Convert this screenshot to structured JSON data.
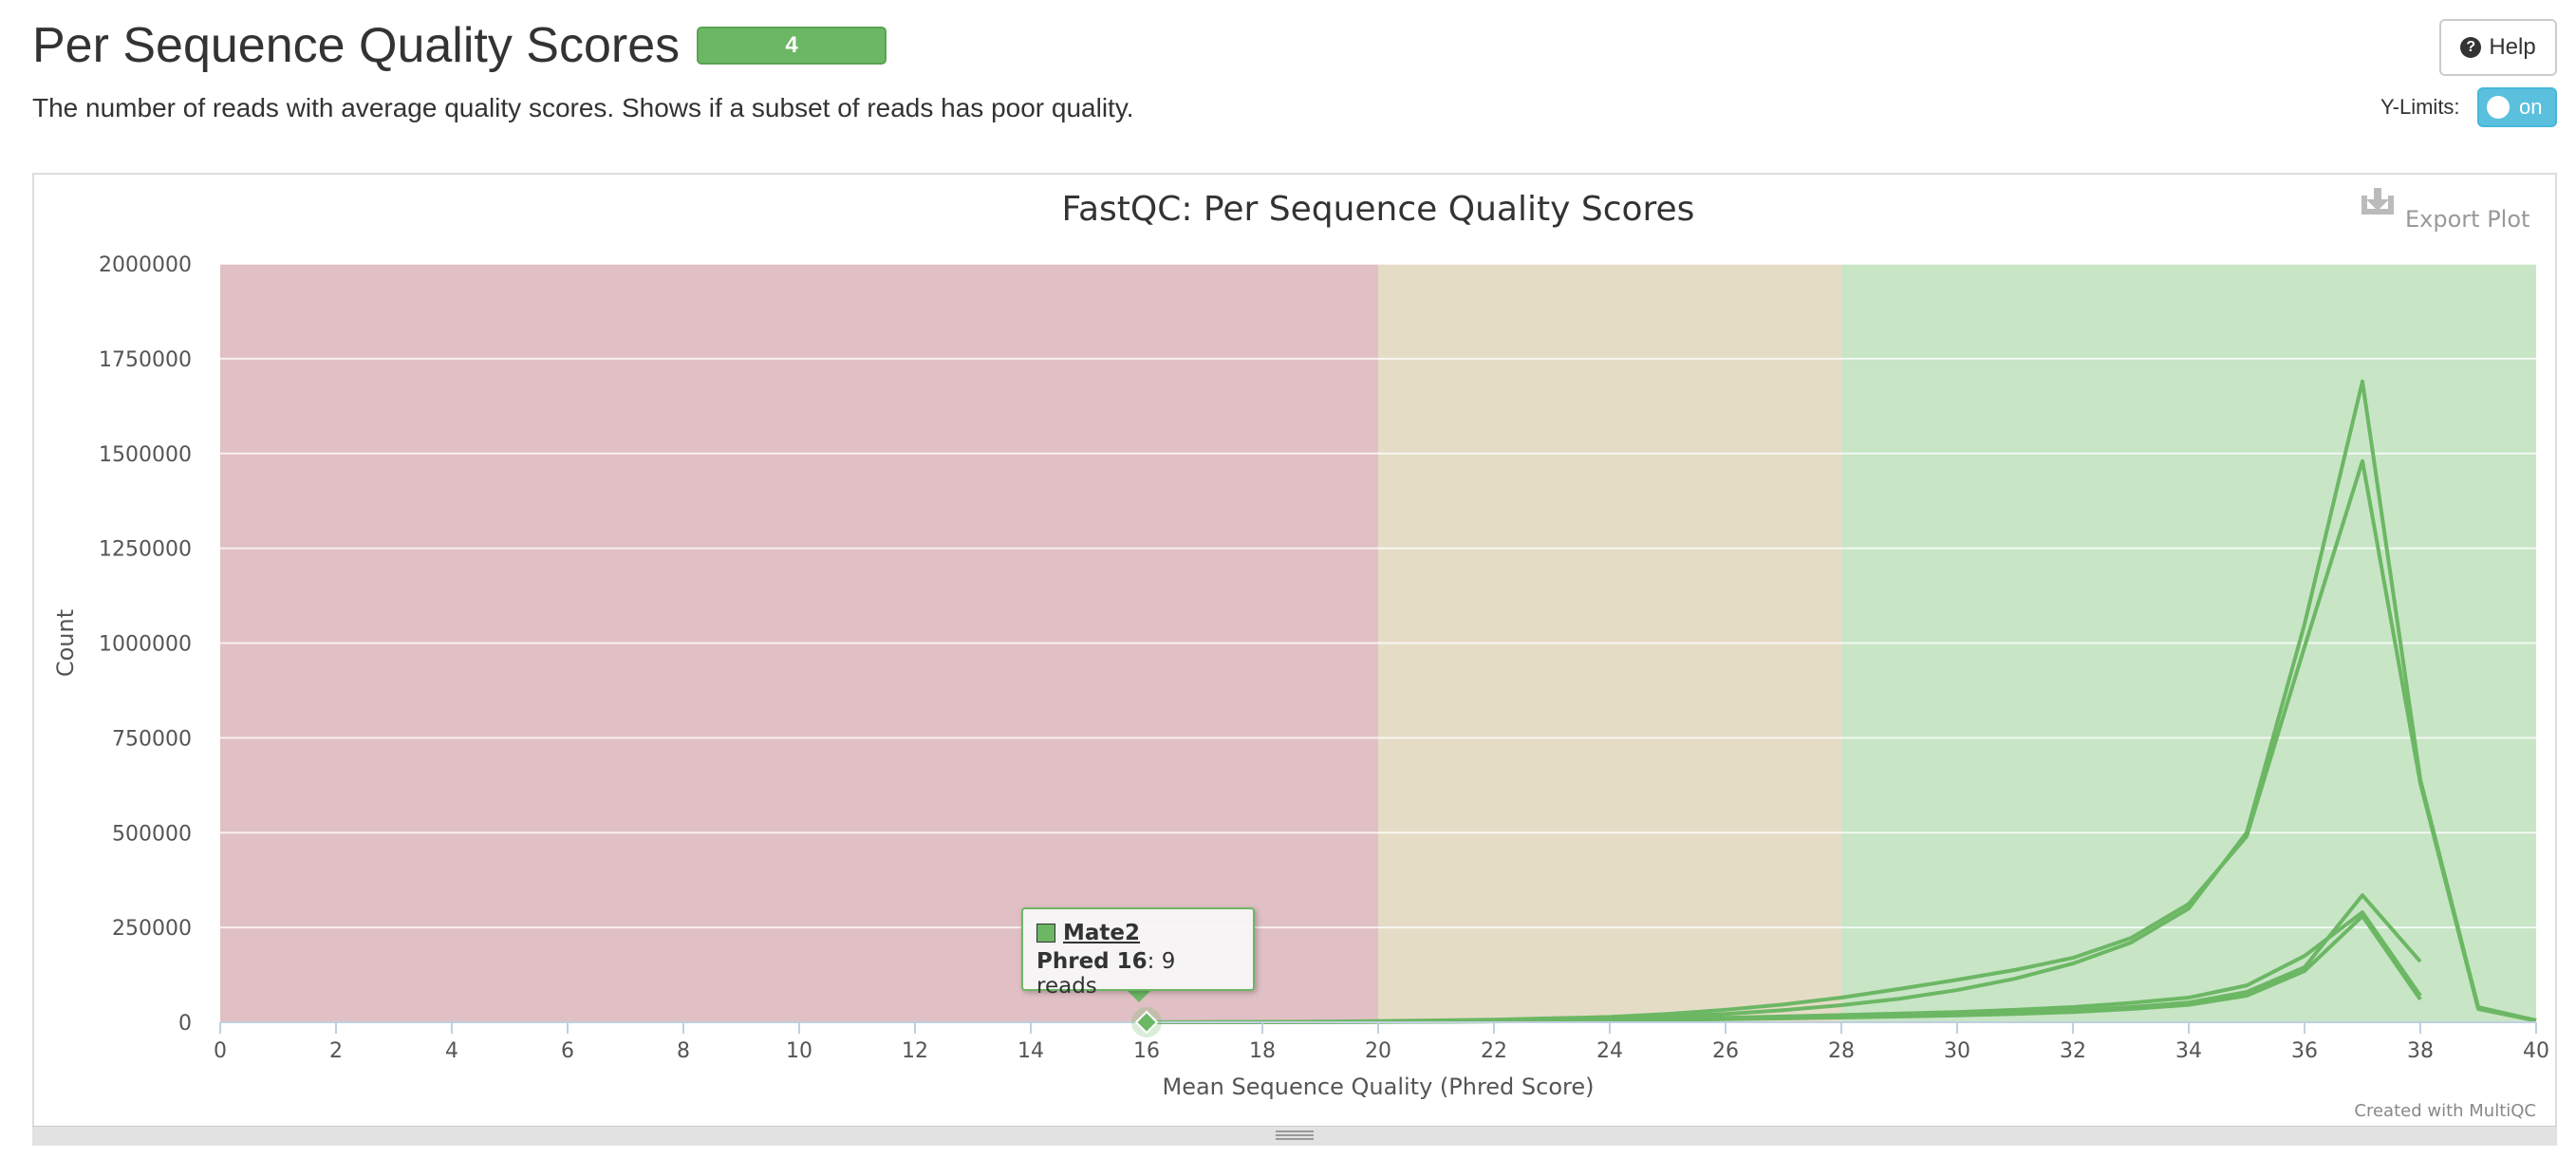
{
  "header": {
    "title": "Per Sequence Quality Scores",
    "badge": "4",
    "description": "The number of reads with average quality scores. Shows if a subset of reads has poor quality.",
    "help_label": "Help",
    "ylimits_label": "Y-Limits:",
    "toggle_label": "on"
  },
  "colors": {
    "series": "#6cb764",
    "band_fail": "#e0c0c4",
    "band_warn": "#e5dcc6",
    "band_pass": "#c8e5c6"
  },
  "chart": {
    "export_label": "Export Plot",
    "credit": "Created with MultiQC"
  },
  "tooltip": {
    "series": "Mate2",
    "key": "Phred 16",
    "value": ": 9 reads"
  },
  "chart_data": {
    "type": "line",
    "title": "FastQC: Per Sequence Quality Scores",
    "xlabel": "Mean Sequence Quality (Phred Score)",
    "ylabel": "Count",
    "xlim": [
      0,
      40
    ],
    "ylim": [
      0,
      2000000
    ],
    "xticks": [
      0,
      2,
      4,
      6,
      8,
      10,
      12,
      14,
      16,
      18,
      20,
      22,
      24,
      26,
      28,
      30,
      32,
      34,
      36,
      38,
      40
    ],
    "yticks": [
      0,
      250000,
      500000,
      750000,
      1000000,
      1250000,
      1500000,
      1750000,
      2000000
    ],
    "grid": true,
    "legend": "none",
    "bands": [
      {
        "from": 0,
        "to": 20,
        "status": "fail"
      },
      {
        "from": 20,
        "to": 28,
        "status": "warn"
      },
      {
        "from": 28,
        "to": 40,
        "status": "pass"
      }
    ],
    "series": [
      {
        "x": [
          16,
          18,
          20,
          22,
          24,
          25,
          26,
          27,
          28,
          29,
          30,
          31,
          32,
          33,
          34,
          35,
          36,
          37,
          38,
          39,
          40
        ],
        "values": [
          0,
          500,
          2000,
          5000,
          10000,
          15000,
          22000,
          32000,
          45000,
          62000,
          85000,
          115000,
          155000,
          210000,
          300000,
          500000,
          1050000,
          1690000,
          640000,
          40000,
          5000
        ]
      },
      {
        "x": [
          16,
          18,
          20,
          22,
          24,
          25,
          26,
          27,
          28,
          29,
          30,
          31,
          32,
          33,
          34,
          35,
          36,
          37,
          38,
          39,
          40
        ],
        "values": [
          0,
          500,
          3000,
          7000,
          14000,
          22000,
          33000,
          47000,
          65000,
          88000,
          112000,
          138000,
          170000,
          222000,
          312000,
          490000,
          990000,
          1480000,
          630000,
          35000,
          4000
        ]
      },
      {
        "name": "Mate2",
        "x": [
          16,
          18,
          20,
          22,
          24,
          26,
          28,
          30,
          31,
          32,
          33,
          34,
          35,
          36,
          37,
          38
        ],
        "values": [
          9,
          300,
          1000,
          2500,
          5000,
          9000,
          14000,
          20000,
          25000,
          31000,
          40000,
          52000,
          80000,
          145000,
          335000,
          160000
        ]
      },
      {
        "x": [
          16,
          18,
          20,
          22,
          24,
          26,
          28,
          30,
          31,
          32,
          33,
          34,
          35,
          36,
          37,
          38
        ],
        "values": [
          0,
          300,
          1200,
          3000,
          6500,
          12000,
          19000,
          27000,
          33000,
          40000,
          51000,
          65000,
          97000,
          175000,
          290000,
          70000
        ]
      },
      {
        "x": [
          16,
          18,
          20,
          22,
          24,
          26,
          28,
          30,
          31,
          32,
          33,
          34,
          35,
          36,
          37,
          38
        ],
        "values": [
          0,
          250,
          900,
          2200,
          4500,
          8000,
          12500,
          18000,
          22000,
          27000,
          35000,
          46000,
          70000,
          135000,
          280000,
          60000
        ]
      }
    ]
  }
}
